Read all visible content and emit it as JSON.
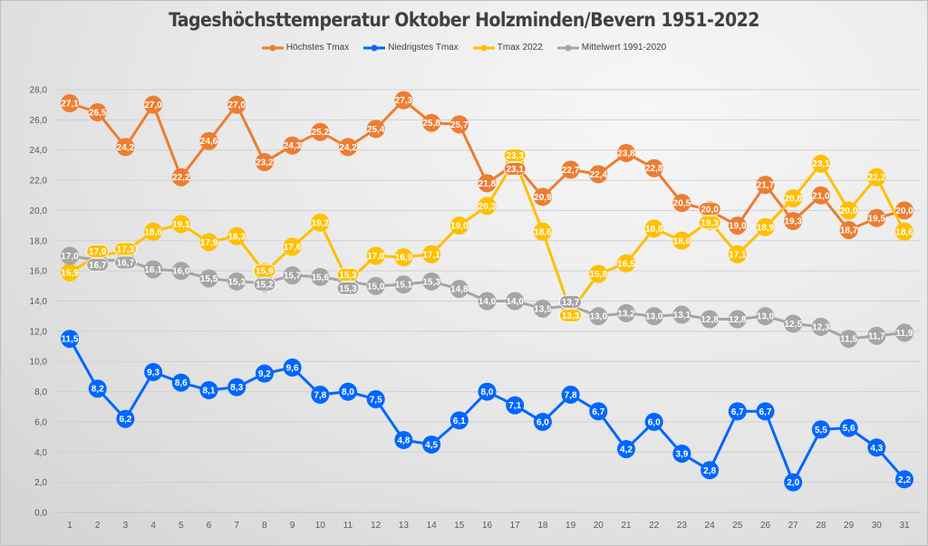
{
  "chart_data": {
    "type": "line",
    "title": "Tageshöchsttemperatur Oktober Holzminden/Bevern 1951-2022",
    "xlabel": "",
    "ylabel": "",
    "x": [
      1,
      2,
      3,
      4,
      5,
      6,
      7,
      8,
      9,
      10,
      11,
      12,
      13,
      14,
      15,
      16,
      17,
      18,
      19,
      20,
      21,
      22,
      23,
      24,
      25,
      26,
      27,
      28,
      29,
      30,
      31
    ],
    "ylim": [
      0,
      28
    ],
    "yticks": [
      "0,0",
      "2,0",
      "4,0",
      "6,0",
      "8,0",
      "10,0",
      "12,0",
      "14,0",
      "16,0",
      "18,0",
      "20,0",
      "22,0",
      "24,0",
      "26,0",
      "28,0"
    ],
    "grid": true,
    "legend": "top",
    "series": [
      {
        "name": "Höchstes Tmax",
        "color": "#ED7D31",
        "values": [
          27.1,
          26.5,
          24.2,
          27.0,
          22.2,
          24.6,
          27.0,
          23.2,
          24.3,
          25.2,
          24.2,
          25.4,
          27.3,
          25.8,
          25.7,
          21.8,
          23.1,
          20.9,
          22.7,
          22.4,
          23.8,
          22.8,
          20.5,
          20.0,
          19.0,
          21.7,
          19.3,
          21.0,
          18.7,
          19.5,
          20.0
        ]
      },
      {
        "name": "Niedrigstes Tmax",
        "color": "#0066FF",
        "values": [
          11.5,
          8.2,
          6.2,
          9.3,
          8.6,
          8.1,
          8.3,
          9.2,
          9.6,
          7.8,
          8.0,
          7.5,
          4.8,
          4.5,
          6.1,
          8.0,
          7.1,
          6.0,
          7.8,
          6.7,
          4.2,
          6.0,
          3.9,
          2.8,
          6.7,
          6.7,
          2.0,
          5.5,
          5.6,
          4.3,
          2.2
        ]
      },
      {
        "name": "Tmax 2022",
        "color": "#FFC000",
        "values": [
          15.9,
          17.0,
          17.3,
          18.6,
          19.1,
          17.9,
          18.3,
          15.9,
          17.6,
          19.2,
          15.3,
          17.0,
          16.9,
          17.1,
          19.0,
          20.3,
          23.3,
          18.6,
          13.3,
          15.8,
          16.5,
          18.8,
          18.0,
          19.3,
          17.1,
          18.9,
          20.8,
          23.1,
          20.0,
          22.2,
          18.6
        ]
      },
      {
        "name": "Mittelwert 1991-2020",
        "color": "#A5A5A5",
        "values": [
          17.0,
          16.7,
          16.7,
          16.1,
          16.0,
          15.5,
          15.3,
          15.2,
          15.7,
          15.6,
          15.3,
          15.0,
          15.1,
          15.3,
          14.8,
          14.0,
          14.0,
          13.5,
          13.7,
          13.0,
          13.2,
          13.0,
          13.1,
          12.8,
          12.8,
          13.0,
          12.5,
          12.3,
          11.5,
          11.7,
          11.9
        ]
      }
    ]
  }
}
